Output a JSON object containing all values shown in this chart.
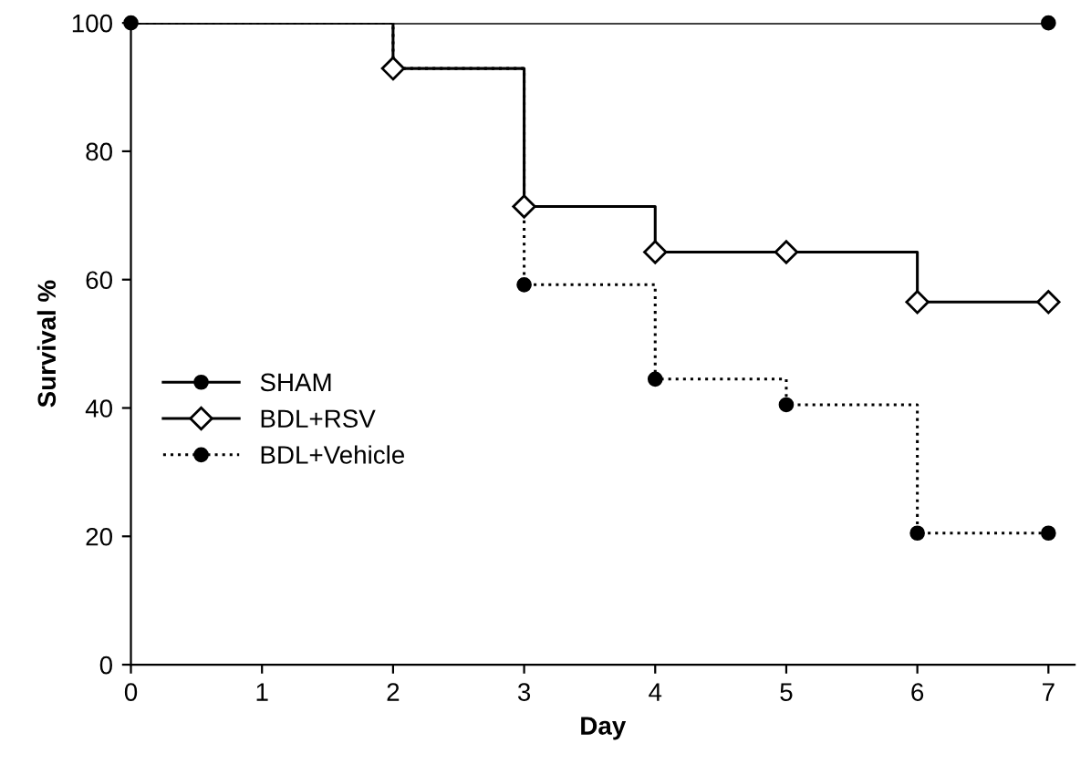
{
  "chart_data": {
    "type": "step",
    "xlabel": "Day",
    "ylabel": "Survival %",
    "xlim": [
      0,
      7.2
    ],
    "ylim": [
      0,
      100
    ],
    "xticks": [
      0,
      1,
      2,
      3,
      4,
      5,
      6,
      7
    ],
    "yticks": [
      0,
      20,
      40,
      60,
      80,
      100
    ],
    "grid": false,
    "legend": "left",
    "series": [
      {
        "name": "SHAM",
        "color": "#000000",
        "marker": "circle",
        "line_style": "solid",
        "x": [
          0,
          7
        ],
        "values": [
          100,
          100
        ]
      },
      {
        "name": "BDL+RSV",
        "color": "#000000",
        "marker": "diamond",
        "line_style": "solid",
        "x": [
          0,
          2,
          3,
          4,
          5,
          6,
          7
        ],
        "values": [
          100,
          92.9,
          71.4,
          64.3,
          64.3,
          56.5,
          56.5
        ]
      },
      {
        "name": "BDL+Vehicle",
        "color": "#000000",
        "marker": "circle",
        "line_style": "dotted",
        "x": [
          0,
          2,
          3,
          4,
          5,
          6,
          7
        ],
        "values": [
          100,
          92.9,
          59.2,
          44.5,
          40.5,
          20.5,
          20.5
        ]
      }
    ]
  }
}
